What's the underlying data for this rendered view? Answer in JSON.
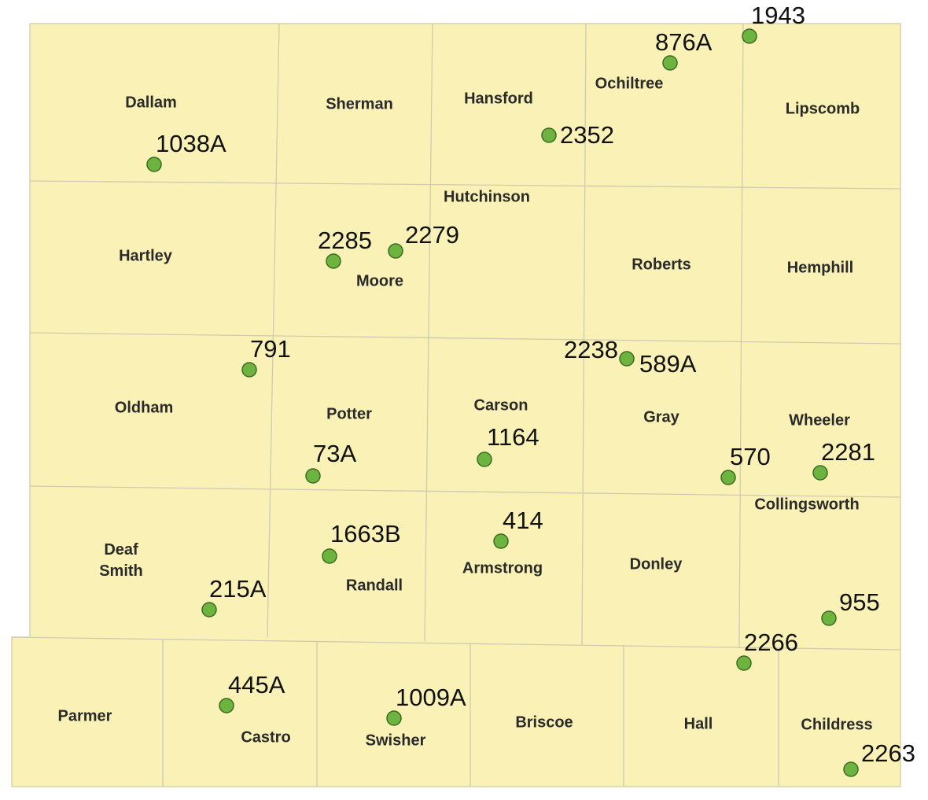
{
  "map": {
    "counties": [
      "Dallam",
      "Sherman",
      "Hansford",
      "Ochiltree",
      "Lipscomb",
      "Hartley",
      "Moore",
      "Hutchinson",
      "Roberts",
      "Hemphill",
      "Oldham",
      "Potter",
      "Carson",
      "Gray",
      "Wheeler",
      "Deaf Smith",
      "Randall",
      "Armstrong",
      "Donley",
      "Collingsworth",
      "Parmer",
      "Castro",
      "Swisher",
      "Briscoe",
      "Hall",
      "Childress"
    ],
    "sites": [
      "1943",
      "876A",
      "2352",
      "1038A",
      "2285",
      "2279",
      "791",
      "2238",
      "589A",
      "1164",
      "73A",
      "570",
      "2281",
      "414",
      "1663B",
      "215A",
      "955",
      "2266",
      "445A",
      "1009A",
      "2263"
    ]
  }
}
